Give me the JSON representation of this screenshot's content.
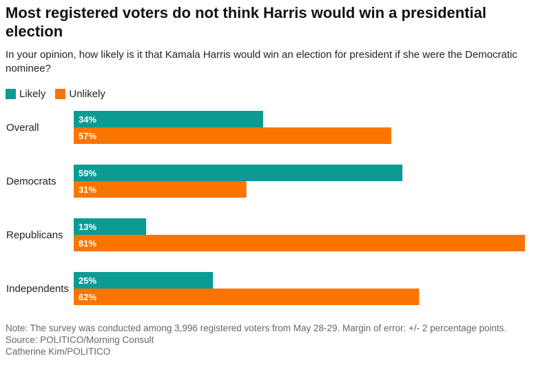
{
  "title": "Most registered voters do not think Harris would win a presidential election",
  "subtitle": "In your opinion, how likely is it that Kamala Harris would win an election for president if she were the Democratic nominee?",
  "colors": {
    "likely": "#0b9b94",
    "unlikely": "#fa7400"
  },
  "chart_data": {
    "type": "bar",
    "orientation": "horizontal",
    "categories": [
      "Overall",
      "Democrats",
      "Republicans",
      "Independents"
    ],
    "series": [
      {
        "name": "Likely",
        "values": [
          34,
          59,
          13,
          25
        ],
        "labels": [
          "34%",
          "59%",
          "13%",
          "25%"
        ]
      },
      {
        "name": "Unlikely",
        "values": [
          57,
          31,
          81,
          62
        ],
        "labels": [
          "57%",
          "31%",
          "81%",
          "62%"
        ]
      }
    ],
    "xlim": [
      0,
      81
    ],
    "grid": false,
    "legend": "top-left"
  },
  "footer": {
    "note": "Note: The survey was conducted among 3,996 registered voters from May 28-29. Margin of error: +/- 2 percentage points.",
    "source": "Source: POLITICO/Morning Consult",
    "credit": "Catherine Kim/POLITICO"
  }
}
